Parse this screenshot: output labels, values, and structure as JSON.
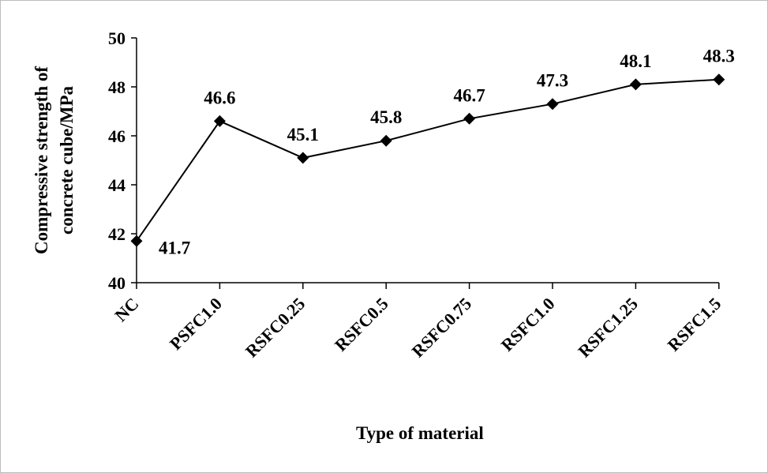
{
  "chart_data": {
    "type": "line",
    "categories": [
      "NC",
      "PSFC1.0",
      "RSFC0.25",
      "RSFC0.5",
      "RSFC0.75",
      "RSFC1.0",
      "RSFC1.25",
      "RSFC1.5"
    ],
    "series": [
      {
        "values": [
          41.7,
          46.6,
          45.1,
          45.8,
          46.7,
          47.3,
          48.1,
          48.3
        ]
      }
    ],
    "data_labels": [
      "41.7",
      "46.6",
      "45.1",
      "45.8",
      "46.7",
      "47.3",
      "48.1",
      "48.3"
    ],
    "yticks": [
      "40",
      "42",
      "44",
      "46",
      "48",
      "50"
    ],
    "ylim": [
      40,
      50
    ],
    "xlabel": "Type of material",
    "ylabel_lines": [
      "Compressive strength of",
      "concrete cube/MPa"
    ],
    "grid": false,
    "legend": "none",
    "line_color": "#000000",
    "marker": "diamond"
  }
}
